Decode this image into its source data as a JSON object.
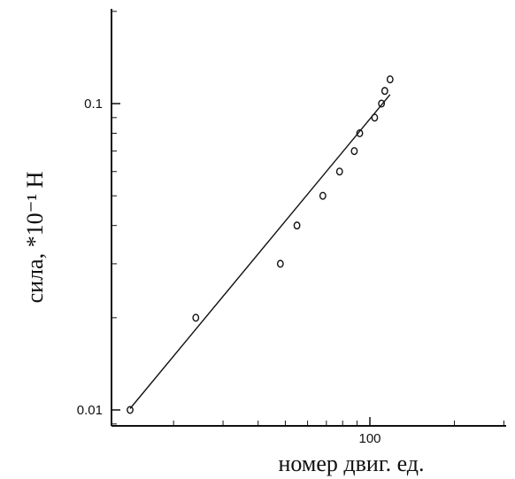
{
  "chart_data": {
    "type": "scatter",
    "title": "",
    "xlabel": "номер двиг. ед.",
    "ylabel": "сила, *10⁻¹ Н",
    "xscale": "log",
    "yscale": "log",
    "xlim": [
      12,
      300
    ],
    "ylim": [
      0.009,
      0.3
    ],
    "x_ticks": [
      {
        "value": 100,
        "label": "100"
      }
    ],
    "y_ticks": [
      {
        "value": 0.01,
        "label": "0.01"
      },
      {
        "value": 0.1,
        "label": "0.1"
      }
    ],
    "grid": false,
    "series": [
      {
        "marker": "open-circle",
        "x": [
          14,
          24,
          48,
          55,
          68,
          78,
          88,
          92,
          104,
          110,
          113,
          118
        ],
        "y": [
          0.01,
          0.02,
          0.03,
          0.04,
          0.05,
          0.06,
          0.07,
          0.08,
          0.09,
          0.1,
          0.11,
          0.12
        ]
      }
    ],
    "fit_line": {
      "x": [
        14,
        118
      ],
      "y": [
        0.0101,
        0.107
      ]
    }
  }
}
